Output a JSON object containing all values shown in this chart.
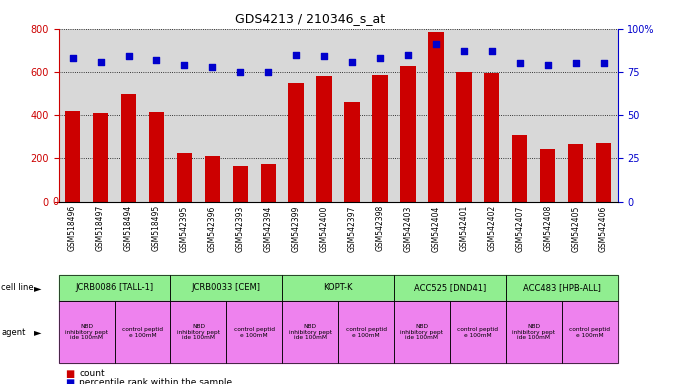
{
  "title": "GDS4213 / 210346_s_at",
  "gsm_labels": [
    "GSM518496",
    "GSM518497",
    "GSM518494",
    "GSM518495",
    "GSM542395",
    "GSM542396",
    "GSM542393",
    "GSM542394",
    "GSM542399",
    "GSM542400",
    "GSM542397",
    "GSM542398",
    "GSM542403",
    "GSM542404",
    "GSM542401",
    "GSM542402",
    "GSM542407",
    "GSM542408",
    "GSM542405",
    "GSM542406"
  ],
  "bar_values": [
    420,
    410,
    500,
    415,
    225,
    210,
    165,
    175,
    550,
    580,
    460,
    585,
    630,
    785,
    600,
    595,
    310,
    245,
    265,
    270
  ],
  "dot_values": [
    83,
    81,
    84,
    82,
    79,
    78,
    75,
    75,
    85,
    84,
    81,
    83,
    85,
    91,
    87,
    87,
    80,
    79,
    80,
    80
  ],
  "bar_color": "#cc0000",
  "dot_color": "#0000cc",
  "yleft_max": 800,
  "yleft_ticks": [
    0,
    200,
    400,
    600,
    800
  ],
  "yright_max": 100,
  "yright_ticks": [
    0,
    25,
    50,
    75,
    100
  ],
  "cell_line_groups": [
    {
      "label": "JCRB0086 [TALL-1]",
      "start": 0,
      "end": 3,
      "color": "#90EE90"
    },
    {
      "label": "JCRB0033 [CEM]",
      "start": 4,
      "end": 7,
      "color": "#90EE90"
    },
    {
      "label": "KOPT-K",
      "start": 8,
      "end": 11,
      "color": "#90EE90"
    },
    {
      "label": "ACC525 [DND41]",
      "start": 12,
      "end": 15,
      "color": "#90EE90"
    },
    {
      "label": "ACC483 [HPB-ALL]",
      "start": 16,
      "end": 19,
      "color": "#90EE90"
    }
  ],
  "agent_groups": [
    {
      "label": "NBD\ninhibitory pept\nide 100mM",
      "start": 0,
      "end": 1,
      "color": "#EE82EE"
    },
    {
      "label": "control peptid\ne 100mM",
      "start": 2,
      "end": 3,
      "color": "#EE82EE"
    },
    {
      "label": "NBD\ninhibitory pept\nide 100mM",
      "start": 4,
      "end": 5,
      "color": "#EE82EE"
    },
    {
      "label": "control peptid\ne 100mM",
      "start": 6,
      "end": 7,
      "color": "#EE82EE"
    },
    {
      "label": "NBD\ninhibitory pept\nide 100mM",
      "start": 8,
      "end": 9,
      "color": "#EE82EE"
    },
    {
      "label": "control peptid\ne 100mM",
      "start": 10,
      "end": 11,
      "color": "#EE82EE"
    },
    {
      "label": "NBD\ninhibitory pept\nide 100mM",
      "start": 12,
      "end": 13,
      "color": "#EE82EE"
    },
    {
      "label": "control peptid\ne 100mM",
      "start": 14,
      "end": 15,
      "color": "#EE82EE"
    },
    {
      "label": "NBD\ninhibitory pept\nide 100mM",
      "start": 16,
      "end": 17,
      "color": "#EE82EE"
    },
    {
      "label": "control peptid\ne 100mM",
      "start": 18,
      "end": 19,
      "color": "#EE82EE"
    }
  ],
  "legend_count_color": "#cc0000",
  "legend_dot_color": "#0000cc",
  "background_color": "#ffffff",
  "plot_bg_color": "#d8d8d8",
  "xlabel_bg_color": "#c8c8c8"
}
